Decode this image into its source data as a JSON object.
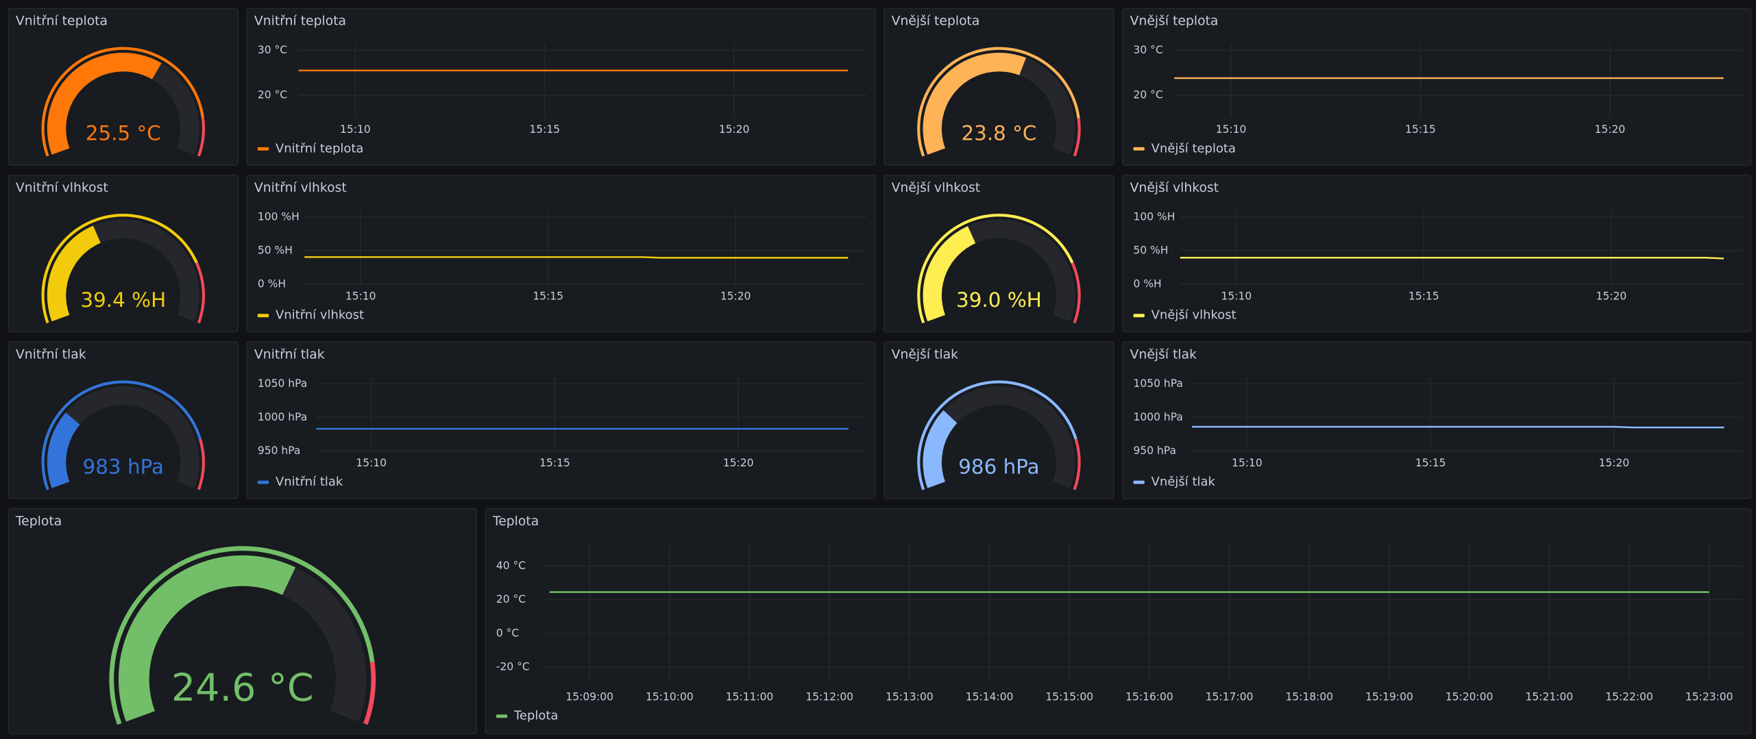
{
  "panels": [
    {
      "type": "gauge",
      "title": "Vnitřní teplota",
      "value": 25.5,
      "value_label": "25.5 °C",
      "color": "#ff780a",
      "lim": [
        0,
        40
      ],
      "threshold": 35,
      "threshold_color": "#f2495c"
    },
    {
      "type": "line",
      "title": "Vnitřní teplota",
      "ylim": [
        15,
        30
      ],
      "yticks": [
        {
          "value": 20,
          "label": "20 °C"
        },
        {
          "value": 30,
          "label": "30 °C"
        }
      ],
      "xlim": [
        "15:08:30",
        "15:23:30"
      ],
      "xticks": [
        "15:10",
        "15:15",
        "15:20"
      ],
      "series": [
        {
          "name": "Vnitřní teplota",
          "color": "#ff780a",
          "x": [
            "15:08:30",
            "15:23:00"
          ],
          "values": [
            25.5,
            25.5
          ]
        }
      ]
    },
    {
      "type": "gauge",
      "title": "Vnější teplota",
      "value": 23.8,
      "value_label": "23.8 °C",
      "color": "#ffb357",
      "lim": [
        0,
        40
      ],
      "threshold": 35,
      "threshold_color": "#f2495c"
    },
    {
      "type": "line",
      "title": "Vnější teplota",
      "ylim": [
        15,
        30
      ],
      "yticks": [
        {
          "value": 20,
          "label": "20 °C"
        },
        {
          "value": 30,
          "label": "30 °C"
        }
      ],
      "xlim": [
        "15:08:30",
        "15:23:30"
      ],
      "xticks": [
        "15:10",
        "15:15",
        "15:20"
      ],
      "series": [
        {
          "name": "Vnější teplota",
          "color": "#ffb357",
          "x": [
            "15:08:30",
            "15:23:00"
          ],
          "values": [
            23.8,
            23.8
          ]
        }
      ]
    },
    {
      "type": "gauge",
      "title": "Vnitřní vlhkost",
      "value": 39.4,
      "value_label": "39.4 %H",
      "color": "#f2cc0c",
      "lim": [
        0,
        100
      ],
      "threshold": 80,
      "threshold_color": "#f2495c"
    },
    {
      "type": "line",
      "title": "Vnitřní vlhkost",
      "ylim": [
        0,
        100
      ],
      "yticks": [
        {
          "value": 0,
          "label": "0 %H"
        },
        {
          "value": 50,
          "label": "50 %H"
        },
        {
          "value": 100,
          "label": "100 %H"
        }
      ],
      "xlim": [
        "15:08:30",
        "15:23:30"
      ],
      "xticks": [
        "15:10",
        "15:15",
        "15:20"
      ],
      "series": [
        {
          "name": "Vnitřní vlhkost",
          "color": "#f2cc0c",
          "x": [
            "15:08:30",
            "15:17:30",
            "15:18:00",
            "15:23:00"
          ],
          "values": [
            40.5,
            40.5,
            39.4,
            39.4
          ]
        }
      ]
    },
    {
      "type": "gauge",
      "title": "Vnější vlhkost",
      "value": 39.0,
      "value_label": "39.0 %H",
      "color": "#ffee52",
      "lim": [
        0,
        100
      ],
      "threshold": 80,
      "threshold_color": "#f2495c"
    },
    {
      "type": "line",
      "title": "Vnější vlhkost",
      "ylim": [
        0,
        100
      ],
      "yticks": [
        {
          "value": 0,
          "label": "0 %H"
        },
        {
          "value": 50,
          "label": "50 %H"
        },
        {
          "value": 100,
          "label": "100 %H"
        }
      ],
      "xlim": [
        "15:08:30",
        "15:23:30"
      ],
      "xticks": [
        "15:10",
        "15:15",
        "15:20"
      ],
      "series": [
        {
          "name": "Vnější vlhkost",
          "color": "#ffee52",
          "x": [
            "15:08:30",
            "15:22:30",
            "15:23:00"
          ],
          "values": [
            39.5,
            39.5,
            38.3
          ]
        }
      ]
    },
    {
      "type": "gauge",
      "title": "Vnitřní tlak",
      "value": 983,
      "value_label": "983 hPa",
      "color": "#3274d9",
      "lim": [
        900,
        1200
      ],
      "threshold": 1150,
      "threshold_color": "#f2495c"
    },
    {
      "type": "line",
      "title": "Vnitřní tlak",
      "ylim": [
        950,
        1050
      ],
      "yticks": [
        {
          "value": 950,
          "label": "950 hPa"
        },
        {
          "value": 1000,
          "label": "1000 hPa"
        },
        {
          "value": 1050,
          "label": "1050 hPa"
        }
      ],
      "xlim": [
        "15:08:30",
        "15:23:30"
      ],
      "xticks": [
        "15:10",
        "15:15",
        "15:20"
      ],
      "series": [
        {
          "name": "Vnitřní tlak",
          "color": "#3274d9",
          "x": [
            "15:08:30",
            "15:23:00"
          ],
          "values": [
            983,
            983
          ]
        }
      ]
    },
    {
      "type": "gauge",
      "title": "Vnější tlak",
      "value": 986,
      "value_label": "986 hPa",
      "color": "#8ab8ff",
      "lim": [
        900,
        1200
      ],
      "threshold": 1150,
      "threshold_color": "#f2495c"
    },
    {
      "type": "line",
      "title": "Vnější tlak",
      "ylim": [
        950,
        1050
      ],
      "yticks": [
        {
          "value": 950,
          "label": "950 hPa"
        },
        {
          "value": 1000,
          "label": "1000 hPa"
        },
        {
          "value": 1050,
          "label": "1050 hPa"
        }
      ],
      "xlim": [
        "15:08:30",
        "15:23:30"
      ],
      "xticks": [
        "15:10",
        "15:15",
        "15:20"
      ],
      "series": [
        {
          "name": "Vnější tlak",
          "color": "#8ab8ff",
          "x": [
            "15:08:30",
            "15:20:00",
            "15:20:30",
            "15:23:00"
          ],
          "values": [
            986,
            986,
            985,
            985
          ]
        }
      ]
    },
    {
      "type": "gauge",
      "title": "Teplota",
      "value": 24.6,
      "value_label": "24.6 °C",
      "color": "#73bf69",
      "lim": [
        0,
        40
      ],
      "threshold": 35,
      "threshold_color": "#f2495c"
    },
    {
      "type": "line",
      "title": "Teplota",
      "ylim": [
        -30,
        45
      ],
      "yticks": [
        {
          "value": -20,
          "label": "-20 °C"
        },
        {
          "value": 0,
          "label": "0 °C"
        },
        {
          "value": 20,
          "label": "20 °C"
        },
        {
          "value": 40,
          "label": "40 °C"
        }
      ],
      "xlim": [
        "15:08:25",
        "15:23:25"
      ],
      "xticks": [
        "15:09:00",
        "15:10:00",
        "15:11:00",
        "15:12:00",
        "15:13:00",
        "15:14:00",
        "15:15:00",
        "15:16:00",
        "15:17:00",
        "15:18:00",
        "15:19:00",
        "15:20:00",
        "15:21:00",
        "15:22:00",
        "15:23:00"
      ],
      "series": [
        {
          "name": "Teplota",
          "color": "#73bf69",
          "x": [
            "15:08:30",
            "15:23:00"
          ],
          "values": [
            24.6,
            24.6
          ]
        }
      ]
    }
  ]
}
